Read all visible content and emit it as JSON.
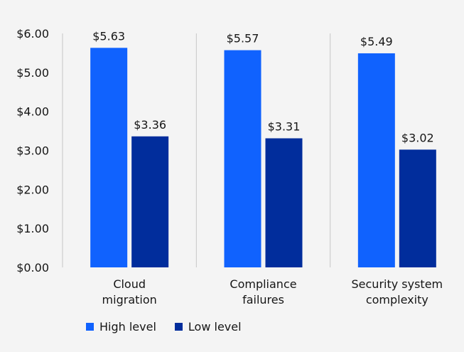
{
  "chart_data": {
    "type": "bar",
    "categories": [
      [
        "Cloud",
        "migration"
      ],
      [
        "Compliance",
        "failures"
      ],
      [
        "Security system",
        "complexity"
      ]
    ],
    "series": [
      {
        "name": "High level",
        "color": "#1062fe",
        "values": [
          5.63,
          5.57,
          5.49
        ]
      },
      {
        "name": "Low level",
        "color": "#012d9c",
        "values": [
          3.36,
          3.31,
          3.02
        ]
      }
    ],
    "data_labels": [
      [
        "$5.63",
        "$5.57",
        "$5.49"
      ],
      [
        "$3.36",
        "$3.31",
        "$3.02"
      ]
    ],
    "ylim": [
      0,
      6
    ],
    "yticks": [
      0,
      1,
      2,
      3,
      4,
      5,
      6
    ],
    "ytick_labels": [
      "$0.00",
      "$1.00",
      "$2.00",
      "$3.00",
      "$4.00",
      "$5.00",
      "$6.00"
    ],
    "title": "",
    "xlabel": "",
    "ylabel": "",
    "legend_position": "bottom-left",
    "grid": false
  }
}
